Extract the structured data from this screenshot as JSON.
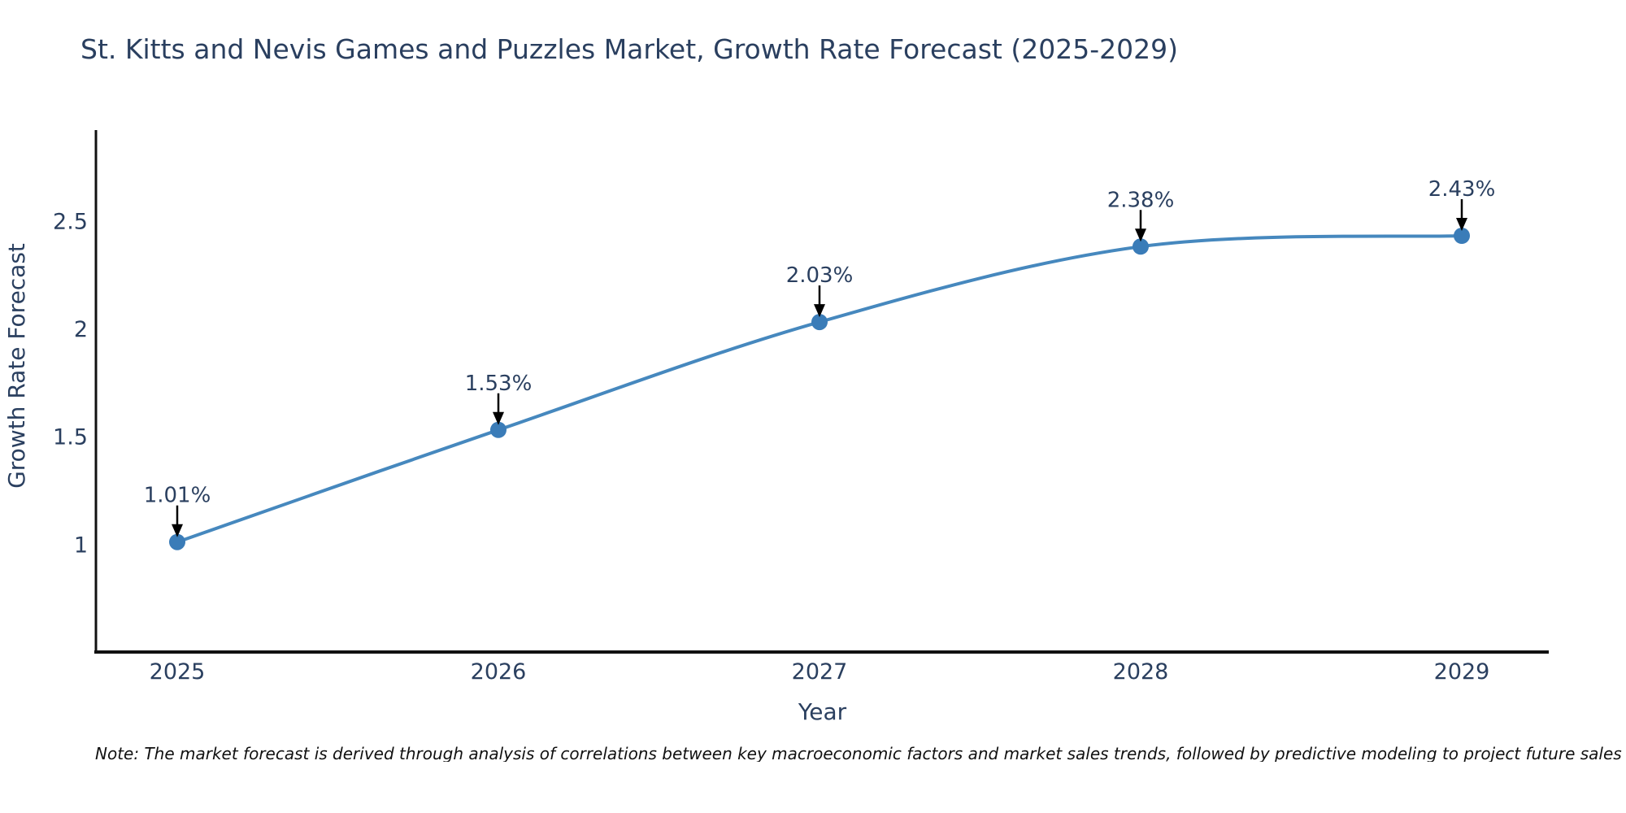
{
  "chart_data": {
    "type": "line",
    "title": "St. Kitts and Nevis Games and Puzzles Market, Growth Rate Forecast (2025-2029)",
    "x": [
      "2025",
      "2026",
      "2027",
      "2028",
      "2029"
    ],
    "series": [
      {
        "name": "Growth Rate Forecast",
        "values": [
          1.01,
          1.53,
          2.03,
          2.38,
          2.43
        ]
      }
    ],
    "point_labels": [
      "1.01%",
      "1.53%",
      "2.03%",
      "2.38%",
      "2.43%"
    ],
    "xlabel": "Year",
    "ylabel": "Growth Rate Forecast",
    "yticks": [
      "1",
      "1.5",
      "2",
      "2.5"
    ],
    "ytick_values": [
      1,
      1.5,
      2,
      2.5
    ],
    "ylim": [
      0.5,
      2.92
    ],
    "line_shape": "spline",
    "grid": false,
    "legend": false,
    "colors": {
      "line": "#4688BE",
      "marker": "#3A7CB8",
      "text": "#2a3f5f",
      "axis": "#111111",
      "annotation_arrow": "#000000"
    }
  },
  "footnote": "Note: The market forecast is derived through analysis of correlations between key macroeconomic factors and market sales trends, followed by predictive modeling to project future sales"
}
